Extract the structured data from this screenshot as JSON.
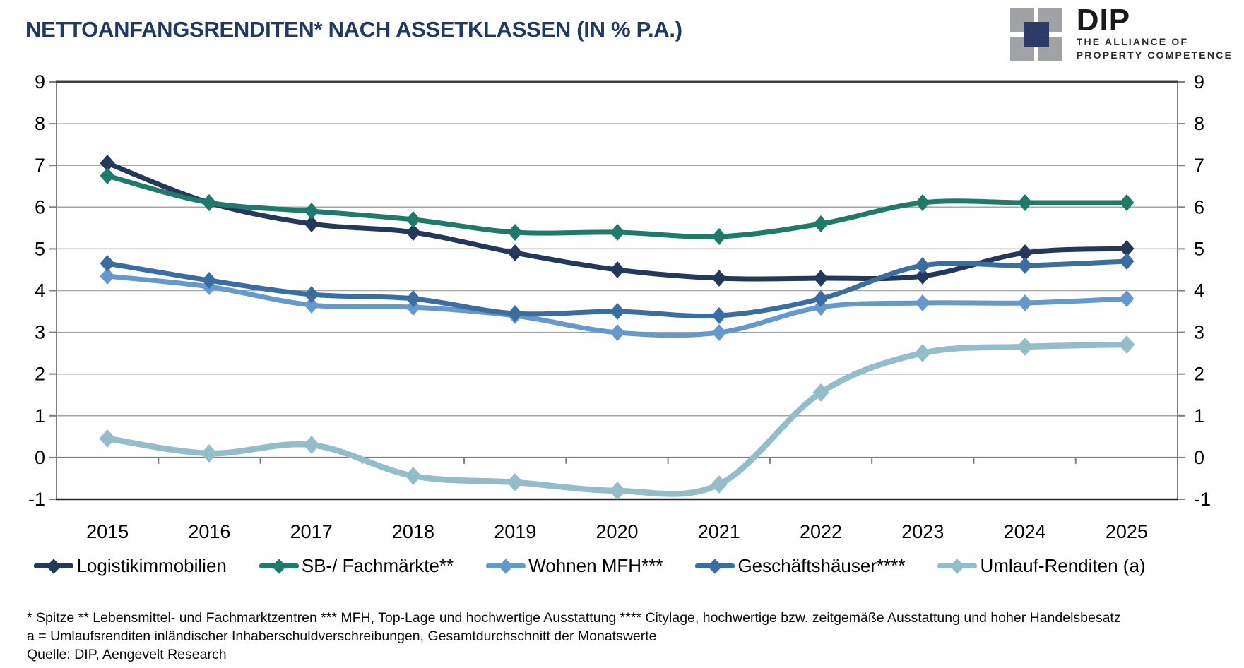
{
  "header": {
    "title": "NETTOANFANGSRENDITEN* NACH ASSETKLASSEN (IN % P.A.)",
    "logo": {
      "name": "DIP",
      "tagline_line1": "THE ALLIANCE OF",
      "tagline_line2": "PROPERTY COMPETENCE",
      "mark_gray": "#A0A2A5",
      "mark_navy": "#2B3A67"
    }
  },
  "chart_data": {
    "type": "line",
    "title": "NETTOANFANGSRENDITEN* NACH ASSETKLASSEN (IN % P.A.)",
    "x": [
      "2015",
      "2016",
      "2017",
      "2018",
      "2019",
      "2020",
      "2021",
      "2022",
      "2023",
      "2024",
      "2025"
    ],
    "series": [
      {
        "name": "Logistikimmobilien",
        "color": "#24385B",
        "values": [
          7.05,
          6.1,
          5.6,
          5.4,
          4.9,
          4.5,
          4.3,
          4.3,
          4.35,
          4.9,
          5.0
        ]
      },
      {
        "name": "SB-/ Fachmärkte**",
        "color": "#1F7A6A",
        "values": [
          6.75,
          6.1,
          5.9,
          5.7,
          5.4,
          5.4,
          5.3,
          5.6,
          6.1,
          6.1,
          6.1
        ]
      },
      {
        "name": "Wohnen MFH***",
        "color": "#6598CB",
        "values": [
          4.35,
          4.1,
          3.65,
          3.6,
          3.4,
          3.0,
          3.0,
          3.6,
          3.7,
          3.7,
          3.8
        ]
      },
      {
        "name": "Geschäftshäuser****",
        "color": "#3A6DA0",
        "values": [
          4.65,
          4.25,
          3.9,
          3.8,
          3.45,
          3.5,
          3.4,
          3.8,
          4.6,
          4.6,
          4.7
        ]
      },
      {
        "name": "Umlauf-Renditen (a)",
        "color": "#93BEC9",
        "values": [
          0.45,
          0.1,
          0.3,
          -0.45,
          -0.6,
          -0.8,
          -0.65,
          1.55,
          2.5,
          2.65,
          2.7
        ]
      }
    ],
    "ylim": [
      -1,
      9
    ],
    "ytick_step": 1,
    "y_axis_sides": "both",
    "grid": true,
    "smoothed_lines": true,
    "marker": "diamond",
    "legend_position": "bottom",
    "colors": {
      "grid": "#A6A6A6",
      "zero_axis": "#7F7F7F",
      "side_axis": "#7F7F7F",
      "top_border": "#404040",
      "bottom_border": "#262626",
      "tick_label": "#000000"
    }
  },
  "footnotes": {
    "line1": "* Spitze ** Lebensmittel- und Fachmarktzentren *** MFH, Top-Lage und hochwertige Ausstattung **** Citylage, hochwertige bzw. zeitgemäße Ausstattung und hoher Handelsbesatz",
    "line2": "a = Umlaufsrenditen inländischer Inhaberschuldverschreibungen, Gesamtdurchschnitt der Monatswerte",
    "line3": "Quelle: DIP, Aengevelt Research"
  }
}
